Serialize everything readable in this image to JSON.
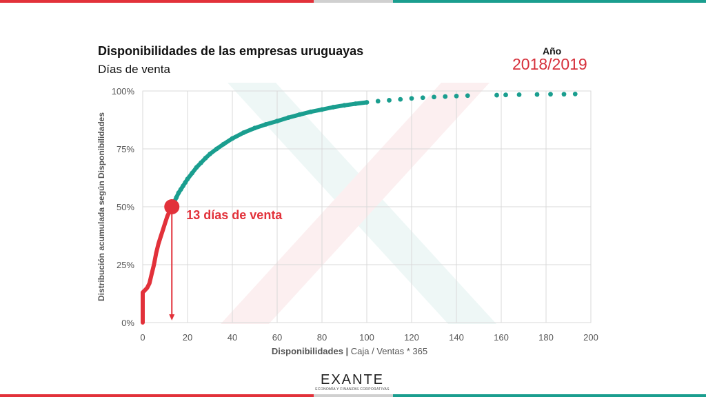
{
  "header": {
    "title": "Disponibilidades de las empresas uruguayas",
    "subtitle": "Días de venta",
    "year_label": "Año",
    "year_value": "2018/2019"
  },
  "brand": {
    "name": "EXANTE",
    "tagline": "ECONOMÍA Y FINANZAS CORPORATIVAS"
  },
  "colors": {
    "accent_red": "#e2313a",
    "accent_teal": "#1a9e8f",
    "bar_gray": "#d0d0d0"
  },
  "chart_data": {
    "type": "scatter",
    "title": "Disponibilidades de las empresas uruguayas",
    "subtitle": "Días de venta",
    "xlabel": "Disponibilidades | Caja / Ventas * 365",
    "ylabel": "Distribución acumulada según Disponibilidades",
    "xlim": [
      0,
      200
    ],
    "ylim": [
      0,
      100
    ],
    "x_ticks": [
      "0",
      "20",
      "40",
      "60",
      "80",
      "100",
      "120",
      "140",
      "160",
      "180",
      "200"
    ],
    "y_ticks": [
      "0%",
      "25%",
      "50%",
      "75%",
      "100%"
    ],
    "grid": true,
    "annotation": {
      "text": "13 días de venta",
      "x": 13,
      "y": 50
    },
    "series": [
      {
        "color": "#e2313a",
        "points": [
          [
            0,
            0
          ],
          [
            0,
            5
          ],
          [
            0,
            10
          ],
          [
            0,
            13
          ],
          [
            1,
            14
          ],
          [
            2,
            15
          ],
          [
            3,
            17
          ],
          [
            4,
            21
          ],
          [
            5,
            25
          ],
          [
            6,
            30
          ],
          [
            7,
            34
          ],
          [
            8,
            37
          ],
          [
            9,
            40
          ],
          [
            10,
            43
          ],
          [
            11,
            46
          ],
          [
            12,
            48
          ],
          [
            13,
            50
          ]
        ]
      },
      {
        "color": "#1a9e8f",
        "points": [
          [
            13,
            50
          ],
          [
            14,
            52
          ],
          [
            15,
            54
          ],
          [
            16,
            56
          ],
          [
            17,
            57.5
          ],
          [
            18,
            59
          ],
          [
            19,
            60.5
          ],
          [
            20,
            62
          ],
          [
            22,
            64.5
          ],
          [
            24,
            67
          ],
          [
            26,
            69
          ],
          [
            28,
            71
          ],
          [
            30,
            72.8
          ],
          [
            33,
            75
          ],
          [
            36,
            77
          ],
          [
            40,
            79.5
          ],
          [
            45,
            82
          ],
          [
            50,
            84
          ],
          [
            55,
            85.6
          ],
          [
            60,
            87
          ],
          [
            65,
            88.5
          ],
          [
            70,
            89.8
          ],
          [
            75,
            91
          ],
          [
            80,
            92
          ],
          [
            85,
            93
          ],
          [
            90,
            93.8
          ],
          [
            95,
            94.5
          ],
          [
            100,
            95.1
          ],
          [
            105,
            95.6
          ],
          [
            110,
            96
          ],
          [
            115,
            96.4
          ],
          [
            120,
            96.8
          ],
          [
            125,
            97.1
          ],
          [
            130,
            97.4
          ],
          [
            135,
            97.6
          ],
          [
            140,
            97.8
          ],
          [
            145,
            98
          ],
          [
            158,
            98.2
          ],
          [
            162,
            98.3
          ],
          [
            168,
            98.4
          ],
          [
            176,
            98.5
          ],
          [
            182,
            98.6
          ],
          [
            188,
            98.6
          ],
          [
            193,
            98.7
          ]
        ]
      }
    ]
  }
}
